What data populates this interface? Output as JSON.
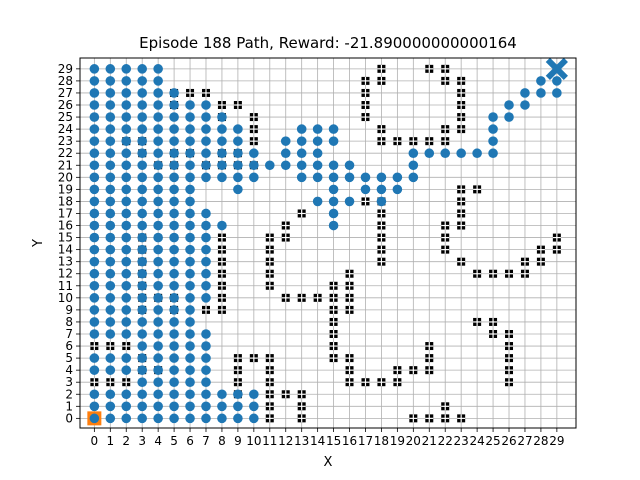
{
  "chart_data": {
    "type": "scatter",
    "title": "Episode 188 Path, Reward: -21.890000000000164",
    "xlabel": "X",
    "ylabel": "Y",
    "xlim": [
      -0.9,
      30.2
    ],
    "ylim": [
      -0.8,
      29.9
    ],
    "grid": true,
    "x_ticks": [
      0,
      1,
      2,
      3,
      4,
      5,
      6,
      7,
      8,
      9,
      10,
      11,
      12,
      13,
      14,
      15,
      16,
      17,
      18,
      19,
      20,
      21,
      22,
      23,
      24,
      25,
      26,
      27,
      28,
      29
    ],
    "y_ticks": [
      0,
      1,
      2,
      3,
      4,
      5,
      6,
      7,
      8,
      9,
      10,
      11,
      12,
      13,
      14,
      15,
      16,
      17,
      18,
      19,
      20,
      21,
      22,
      23,
      24,
      25,
      26,
      27,
      28,
      29
    ],
    "colors": {
      "path": "#1f77b4",
      "obstacle": "#000000",
      "start": "#ff7f0e",
      "goal": "#1f77b4",
      "grid": "#b0b0b0"
    },
    "start": [
      0,
      0
    ],
    "goal": [
      29,
      29
    ],
    "path_rows": [
      {
        "y": 29,
        "xs": [
          0,
          1,
          2,
          3,
          4
        ]
      },
      {
        "y": 28,
        "xs": [
          0,
          1,
          2,
          3,
          4,
          28,
          29
        ]
      },
      {
        "y": 27,
        "xs": [
          0,
          1,
          2,
          3,
          4,
          5,
          27,
          28,
          29
        ]
      },
      {
        "y": 26,
        "xs": [
          0,
          1,
          2,
          3,
          4,
          5,
          6,
          7,
          26,
          27
        ]
      },
      {
        "y": 25,
        "xs": [
          0,
          1,
          2,
          3,
          4,
          5,
          6,
          7,
          8,
          25,
          26
        ]
      },
      {
        "y": 24,
        "xs": [
          0,
          1,
          2,
          3,
          4,
          5,
          6,
          7,
          8,
          9,
          13,
          14,
          15,
          25
        ]
      },
      {
        "y": 23,
        "xs": [
          0,
          1,
          2,
          3,
          4,
          5,
          6,
          7,
          8,
          9,
          12,
          13,
          14,
          15,
          25
        ]
      },
      {
        "y": 22,
        "xs": [
          0,
          1,
          2,
          3,
          4,
          5,
          6,
          7,
          8,
          9,
          10,
          12,
          13,
          14,
          20,
          21,
          22,
          23,
          24,
          25
        ]
      },
      {
        "y": 21,
        "xs": [
          0,
          1,
          2,
          3,
          4,
          5,
          6,
          7,
          8,
          9,
          10,
          11,
          12,
          13,
          14,
          15,
          16,
          20
        ]
      },
      {
        "y": 20,
        "xs": [
          0,
          1,
          2,
          3,
          4,
          5,
          6,
          7,
          8,
          9,
          10,
          13,
          14,
          15,
          16,
          17,
          18,
          19,
          20
        ]
      },
      {
        "y": 19,
        "xs": [
          0,
          1,
          2,
          3,
          4,
          5,
          6,
          9,
          15,
          17,
          18,
          19
        ]
      },
      {
        "y": 18,
        "xs": [
          0,
          1,
          2,
          3,
          4,
          5,
          6,
          14,
          15,
          16,
          18
        ]
      },
      {
        "y": 17,
        "xs": [
          0,
          1,
          2,
          3,
          4,
          5,
          6,
          7,
          15
        ]
      },
      {
        "y": 16,
        "xs": [
          0,
          1,
          2,
          3,
          4,
          5,
          6,
          7,
          8,
          15
        ]
      },
      {
        "y": 15,
        "xs": [
          0,
          1,
          2,
          3,
          4,
          5,
          6,
          7
        ]
      },
      {
        "y": 14,
        "xs": [
          0,
          1,
          2,
          3,
          4,
          5,
          6,
          7
        ]
      },
      {
        "y": 13,
        "xs": [
          0,
          1,
          2,
          3,
          4,
          5,
          6,
          7
        ]
      },
      {
        "y": 12,
        "xs": [
          0,
          1,
          2,
          3,
          4,
          5,
          6,
          7
        ]
      },
      {
        "y": 11,
        "xs": [
          0,
          1,
          2,
          3,
          4,
          5,
          6,
          7
        ]
      },
      {
        "y": 10,
        "xs": [
          0,
          1,
          2,
          3,
          4,
          5,
          6,
          7
        ]
      },
      {
        "y": 9,
        "xs": [
          0,
          1,
          2,
          3,
          4,
          5,
          6
        ]
      },
      {
        "y": 8,
        "xs": [
          0,
          1,
          2,
          3,
          4,
          5,
          6
        ]
      },
      {
        "y": 7,
        "xs": [
          0,
          1,
          2,
          3,
          4,
          5,
          6,
          7
        ]
      },
      {
        "y": 6,
        "xs": [
          3,
          4,
          5,
          6,
          7
        ]
      },
      {
        "y": 5,
        "xs": [
          0,
          1,
          2,
          3,
          4,
          5,
          6,
          7
        ]
      },
      {
        "y": 4,
        "xs": [
          0,
          1,
          2,
          3,
          4,
          5,
          6,
          7
        ]
      },
      {
        "y": 3,
        "xs": [
          3,
          4,
          5,
          6,
          7
        ]
      },
      {
        "y": 2,
        "xs": [
          0,
          1,
          2,
          3,
          4,
          5,
          6,
          7,
          8,
          9,
          10
        ]
      },
      {
        "y": 1,
        "xs": [
          0,
          1,
          2,
          3,
          4,
          5,
          6,
          7,
          8,
          9,
          10
        ]
      },
      {
        "y": 0,
        "xs": [
          0,
          1,
          2,
          3,
          4,
          5,
          6,
          7,
          8,
          9,
          10
        ]
      }
    ],
    "obstacles": [
      [
        21,
        29
      ],
      [
        22,
        29
      ],
      [
        18,
        29
      ],
      [
        17,
        28
      ],
      [
        18,
        28
      ],
      [
        22,
        28
      ],
      [
        23,
        28
      ],
      [
        5,
        27
      ],
      [
        6,
        27
      ],
      [
        7,
        27
      ],
      [
        17,
        27
      ],
      [
        23,
        27
      ],
      [
        5,
        26
      ],
      [
        8,
        26
      ],
      [
        9,
        26
      ],
      [
        17,
        26
      ],
      [
        23,
        26
      ],
      [
        8,
        25
      ],
      [
        10,
        25
      ],
      [
        17,
        25
      ],
      [
        23,
        25
      ],
      [
        10,
        24
      ],
      [
        18,
        24
      ],
      [
        22,
        24
      ],
      [
        23,
        24
      ],
      [
        2,
        23
      ],
      [
        3,
        23
      ],
      [
        10,
        23
      ],
      [
        18,
        23
      ],
      [
        19,
        23
      ],
      [
        20,
        23
      ],
      [
        21,
        23
      ],
      [
        22,
        23
      ],
      [
        3,
        22
      ],
      [
        5,
        22
      ],
      [
        6,
        22
      ],
      [
        8,
        22
      ],
      [
        9,
        22
      ],
      [
        4,
        21
      ],
      [
        5,
        21
      ],
      [
        7,
        21
      ],
      [
        8,
        21
      ],
      [
        9,
        21
      ],
      [
        10,
        21
      ],
      [
        17,
        18
      ],
      [
        18,
        18
      ],
      [
        23,
        18
      ],
      [
        23,
        19
      ],
      [
        24,
        19
      ],
      [
        13,
        17
      ],
      [
        18,
        17
      ],
      [
        23,
        17
      ],
      [
        12,
        16
      ],
      [
        18,
        16
      ],
      [
        22,
        16
      ],
      [
        23,
        16
      ],
      [
        3,
        15
      ],
      [
        8,
        15
      ],
      [
        11,
        15
      ],
      [
        12,
        15
      ],
      [
        18,
        15
      ],
      [
        22,
        15
      ],
      [
        29,
        15
      ],
      [
        3,
        14
      ],
      [
        8,
        14
      ],
      [
        11,
        14
      ],
      [
        18,
        14
      ],
      [
        22,
        14
      ],
      [
        28,
        14
      ],
      [
        29,
        14
      ],
      [
        3,
        13
      ],
      [
        8,
        13
      ],
      [
        11,
        13
      ],
      [
        18,
        13
      ],
      [
        23,
        13
      ],
      [
        27,
        13
      ],
      [
        28,
        13
      ],
      [
        3,
        12
      ],
      [
        8,
        12
      ],
      [
        11,
        12
      ],
      [
        16,
        12
      ],
      [
        24,
        12
      ],
      [
        25,
        12
      ],
      [
        26,
        12
      ],
      [
        27,
        12
      ],
      [
        3,
        11
      ],
      [
        8,
        11
      ],
      [
        11,
        11
      ],
      [
        15,
        11
      ],
      [
        16,
        11
      ],
      [
        3,
        10
      ],
      [
        4,
        10
      ],
      [
        5,
        10
      ],
      [
        8,
        10
      ],
      [
        12,
        10
      ],
      [
        13,
        10
      ],
      [
        14,
        10
      ],
      [
        15,
        10
      ],
      [
        16,
        10
      ],
      [
        3,
        9
      ],
      [
        5,
        9
      ],
      [
        7,
        9
      ],
      [
        8,
        9
      ],
      [
        15,
        9
      ],
      [
        16,
        9
      ],
      [
        15,
        8
      ],
      [
        24,
        8
      ],
      [
        25,
        8
      ],
      [
        15,
        7
      ],
      [
        25,
        7
      ],
      [
        26,
        7
      ],
      [
        0,
        6
      ],
      [
        1,
        6
      ],
      [
        2,
        6
      ],
      [
        15,
        6
      ],
      [
        21,
        6
      ],
      [
        26,
        6
      ],
      [
        3,
        5
      ],
      [
        9,
        5
      ],
      [
        10,
        5
      ],
      [
        11,
        5
      ],
      [
        15,
        5
      ],
      [
        16,
        5
      ],
      [
        21,
        5
      ],
      [
        26,
        5
      ],
      [
        3,
        4
      ],
      [
        4,
        4
      ],
      [
        9,
        4
      ],
      [
        11,
        4
      ],
      [
        16,
        4
      ],
      [
        19,
        4
      ],
      [
        20,
        4
      ],
      [
        21,
        4
      ],
      [
        26,
        4
      ],
      [
        0,
        3
      ],
      [
        1,
        3
      ],
      [
        2,
        3
      ],
      [
        9,
        3
      ],
      [
        11,
        3
      ],
      [
        16,
        3
      ],
      [
        17,
        3
      ],
      [
        18,
        3
      ],
      [
        19,
        3
      ],
      [
        26,
        3
      ],
      [
        9,
        2
      ],
      [
        11,
        2
      ],
      [
        12,
        2
      ],
      [
        13,
        2
      ],
      [
        11,
        1
      ],
      [
        13,
        1
      ],
      [
        22,
        1
      ],
      [
        11,
        0
      ],
      [
        13,
        0
      ],
      [
        20,
        0
      ],
      [
        21,
        0
      ],
      [
        22,
        0
      ],
      [
        23,
        0
      ]
    ]
  }
}
